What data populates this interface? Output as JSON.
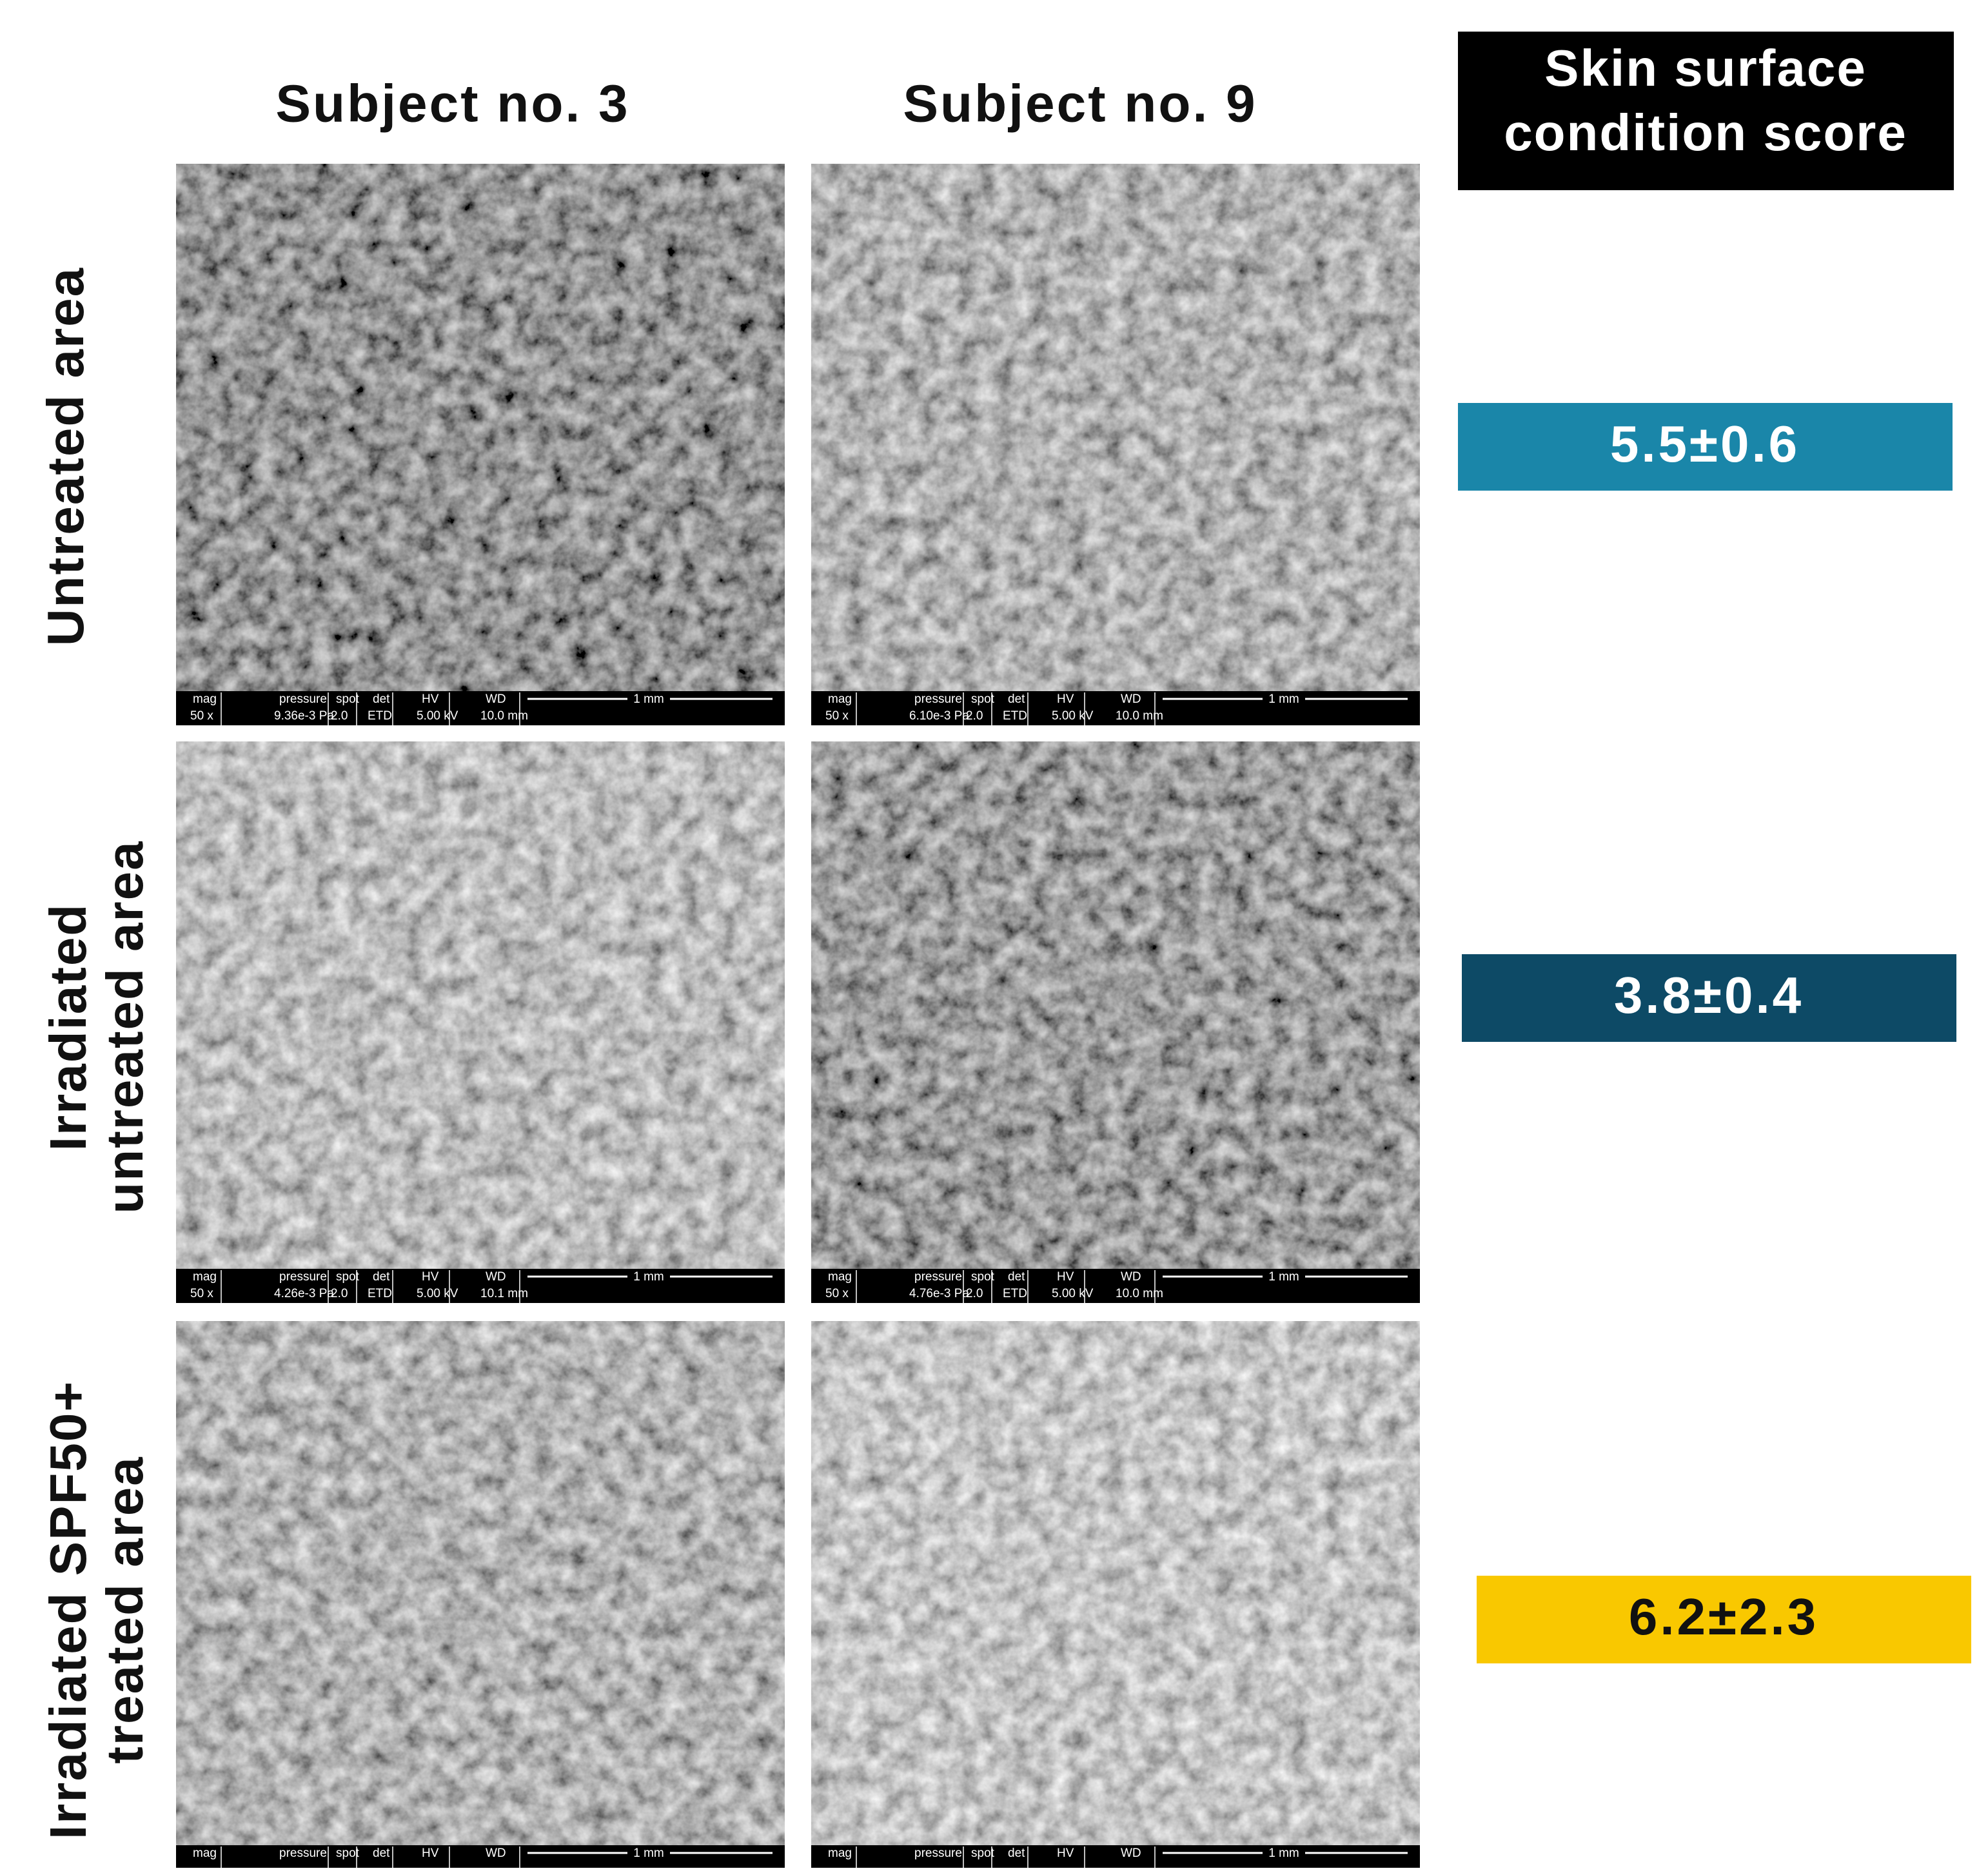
{
  "column_headers": [
    "Subject no. 3",
    "Subject no. 9"
  ],
  "score_header": [
    "Skin surface",
    "condition score"
  ],
  "sem_bar": {
    "headers": [
      "mag",
      "pressure",
      "spot",
      "det",
      "HV",
      "WD"
    ],
    "scale": "1 mm"
  },
  "rows": [
    {
      "label": [
        "Untreated area"
      ],
      "score": "5.5±0.6",
      "color": "#1a86a9",
      "images": [
        {
          "values": [
            "50 x",
            "9.36e-3 Pa",
            "2.0",
            "ETD",
            "5.00 kV",
            "10.0 mm"
          ]
        },
        {
          "values": [
            "50 x",
            "6.10e-3 Pa",
            "2.0",
            "ETD",
            "5.00 kV",
            "10.0 mm"
          ]
        }
      ]
    },
    {
      "label": [
        "Irradiated",
        "untreated area"
      ],
      "score": "3.8±0.4",
      "color": "#0d4a66",
      "images": [
        {
          "values": [
            "50 x",
            "4.26e-3 Pa",
            "2.0",
            "ETD",
            "5.00 kV",
            "10.1 mm"
          ]
        },
        {
          "values": [
            "50 x",
            "4.76e-3 Pa",
            "2.0",
            "ETD",
            "5.00 kV",
            "10.0 mm"
          ]
        }
      ]
    },
    {
      "label": [
        "Irradiated SPF50+",
        "treated area"
      ],
      "score": "6.2±2.3",
      "color": "#f9c800",
      "images": [
        {},
        {}
      ]
    }
  ]
}
